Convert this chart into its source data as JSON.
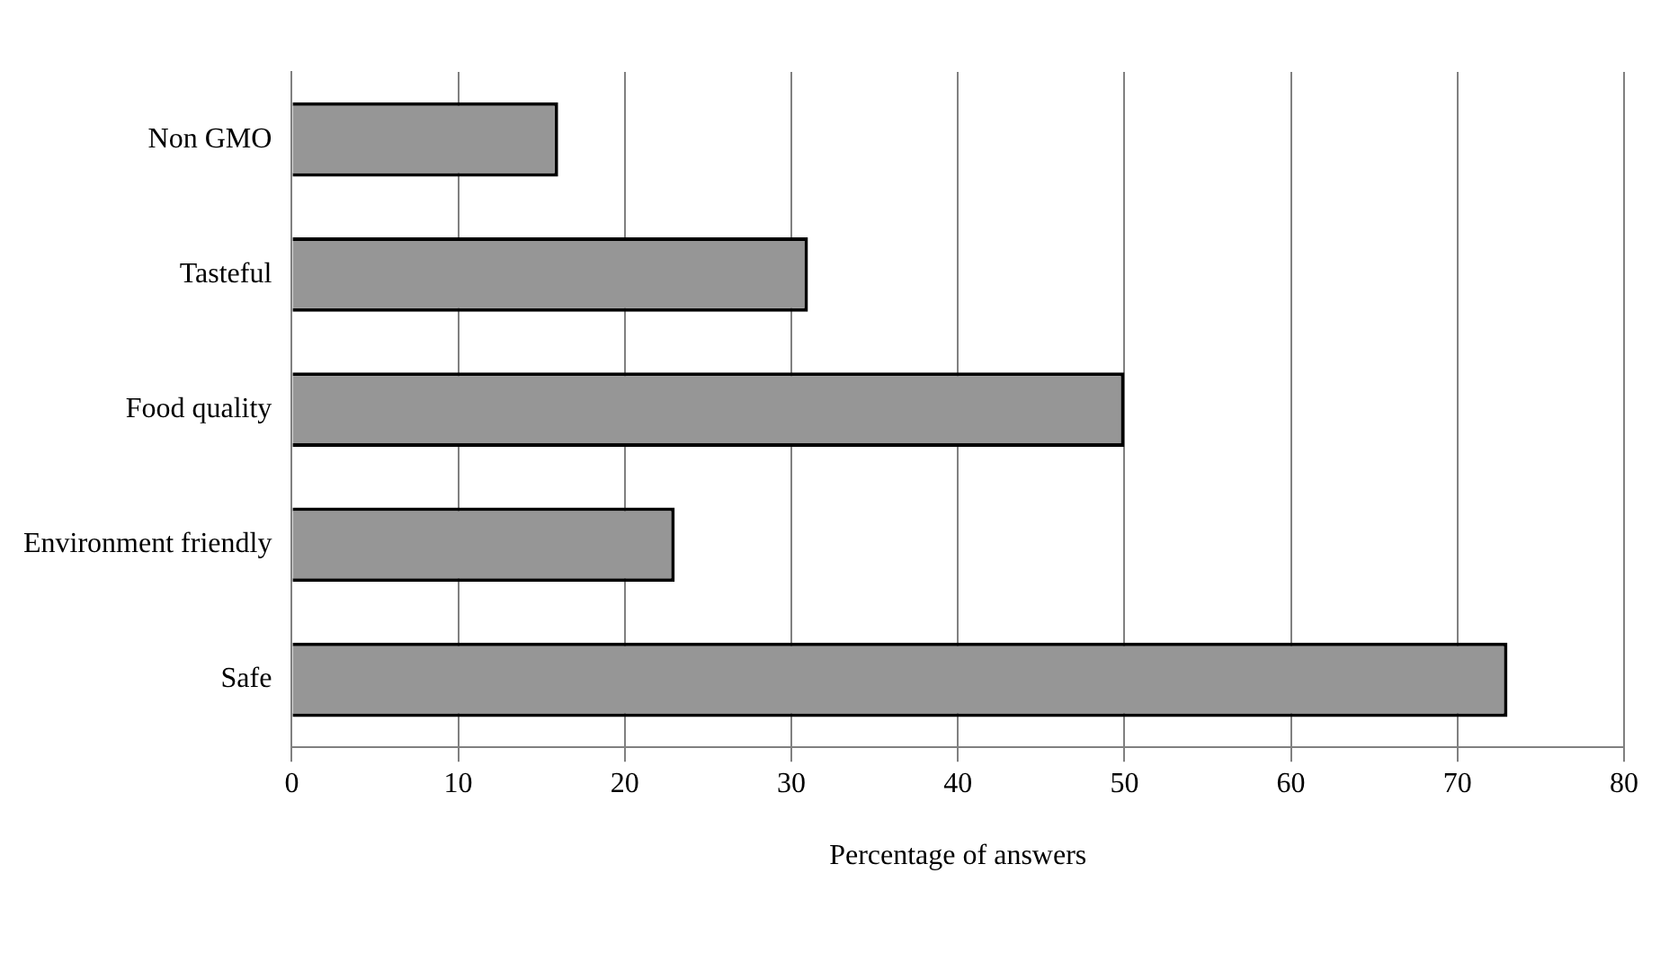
{
  "chart_data": {
    "type": "bar",
    "orientation": "horizontal",
    "xlabel": "Percentage of answers",
    "categories": [
      "Non GMO",
      "Tasteful",
      "Food quality",
      "Environment friendly",
      "Safe"
    ],
    "values": [
      16,
      31,
      50,
      23,
      73
    ],
    "color": "#969696",
    "xlim": [
      0,
      80
    ],
    "xticks": [
      0,
      10,
      20,
      30,
      40,
      50,
      60,
      70,
      80
    ],
    "grid": "x",
    "legend": false
  }
}
